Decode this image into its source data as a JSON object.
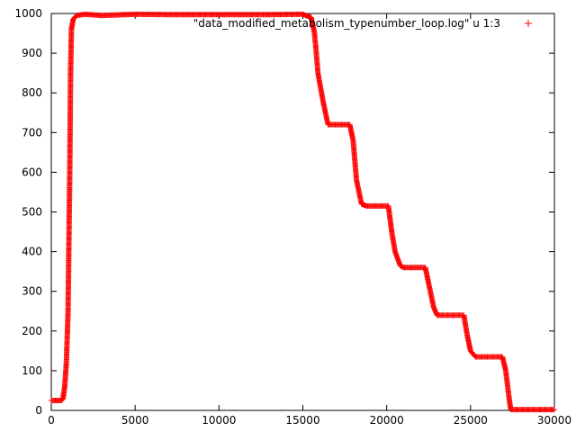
{
  "chart_data": {
    "type": "scatter",
    "title": "",
    "xlabel": "",
    "ylabel": "",
    "xlim": [
      0,
      30000
    ],
    "ylim": [
      0,
      1000
    ],
    "x_ticks": [
      0,
      5000,
      10000,
      15000,
      20000,
      25000,
      30000
    ],
    "y_ticks": [
      0,
      100,
      200,
      300,
      400,
      500,
      600,
      700,
      800,
      900,
      1000
    ],
    "grid": false,
    "legend_position": "top-right",
    "series": [
      {
        "name": "\"data_modified_metabolism_typenumber_loop.log\" u 1:3",
        "color": "#ff0000",
        "marker": "plus",
        "segments": [
          [
            0,
            25
          ],
          [
            600,
            25
          ],
          [
            700,
            30
          ],
          [
            800,
            60
          ],
          [
            900,
            120
          ],
          [
            1000,
            250
          ],
          [
            1100,
            600
          ],
          [
            1150,
            850
          ],
          [
            1200,
            960
          ],
          [
            1300,
            985
          ],
          [
            1500,
            995
          ],
          [
            2000,
            998
          ],
          [
            3000,
            995
          ],
          [
            5000,
            998
          ],
          [
            8000,
            997
          ],
          [
            12000,
            997
          ],
          [
            15000,
            998
          ],
          [
            15500,
            990
          ],
          [
            15700,
            950
          ],
          [
            15900,
            850
          ],
          [
            16200,
            780
          ],
          [
            16500,
            720
          ],
          [
            17800,
            720
          ],
          [
            18000,
            680
          ],
          [
            18200,
            580
          ],
          [
            18500,
            520
          ],
          [
            18800,
            515
          ],
          [
            20100,
            515
          ],
          [
            20300,
            450
          ],
          [
            20500,
            400
          ],
          [
            20800,
            365
          ],
          [
            21000,
            360
          ],
          [
            22300,
            360
          ],
          [
            22500,
            320
          ],
          [
            22800,
            260
          ],
          [
            23000,
            240
          ],
          [
            24600,
            240
          ],
          [
            24800,
            190
          ],
          [
            25000,
            150
          ],
          [
            25300,
            135
          ],
          [
            26900,
            135
          ],
          [
            27100,
            100
          ],
          [
            27300,
            30
          ],
          [
            27400,
            2
          ],
          [
            30000,
            2
          ]
        ]
      }
    ]
  }
}
